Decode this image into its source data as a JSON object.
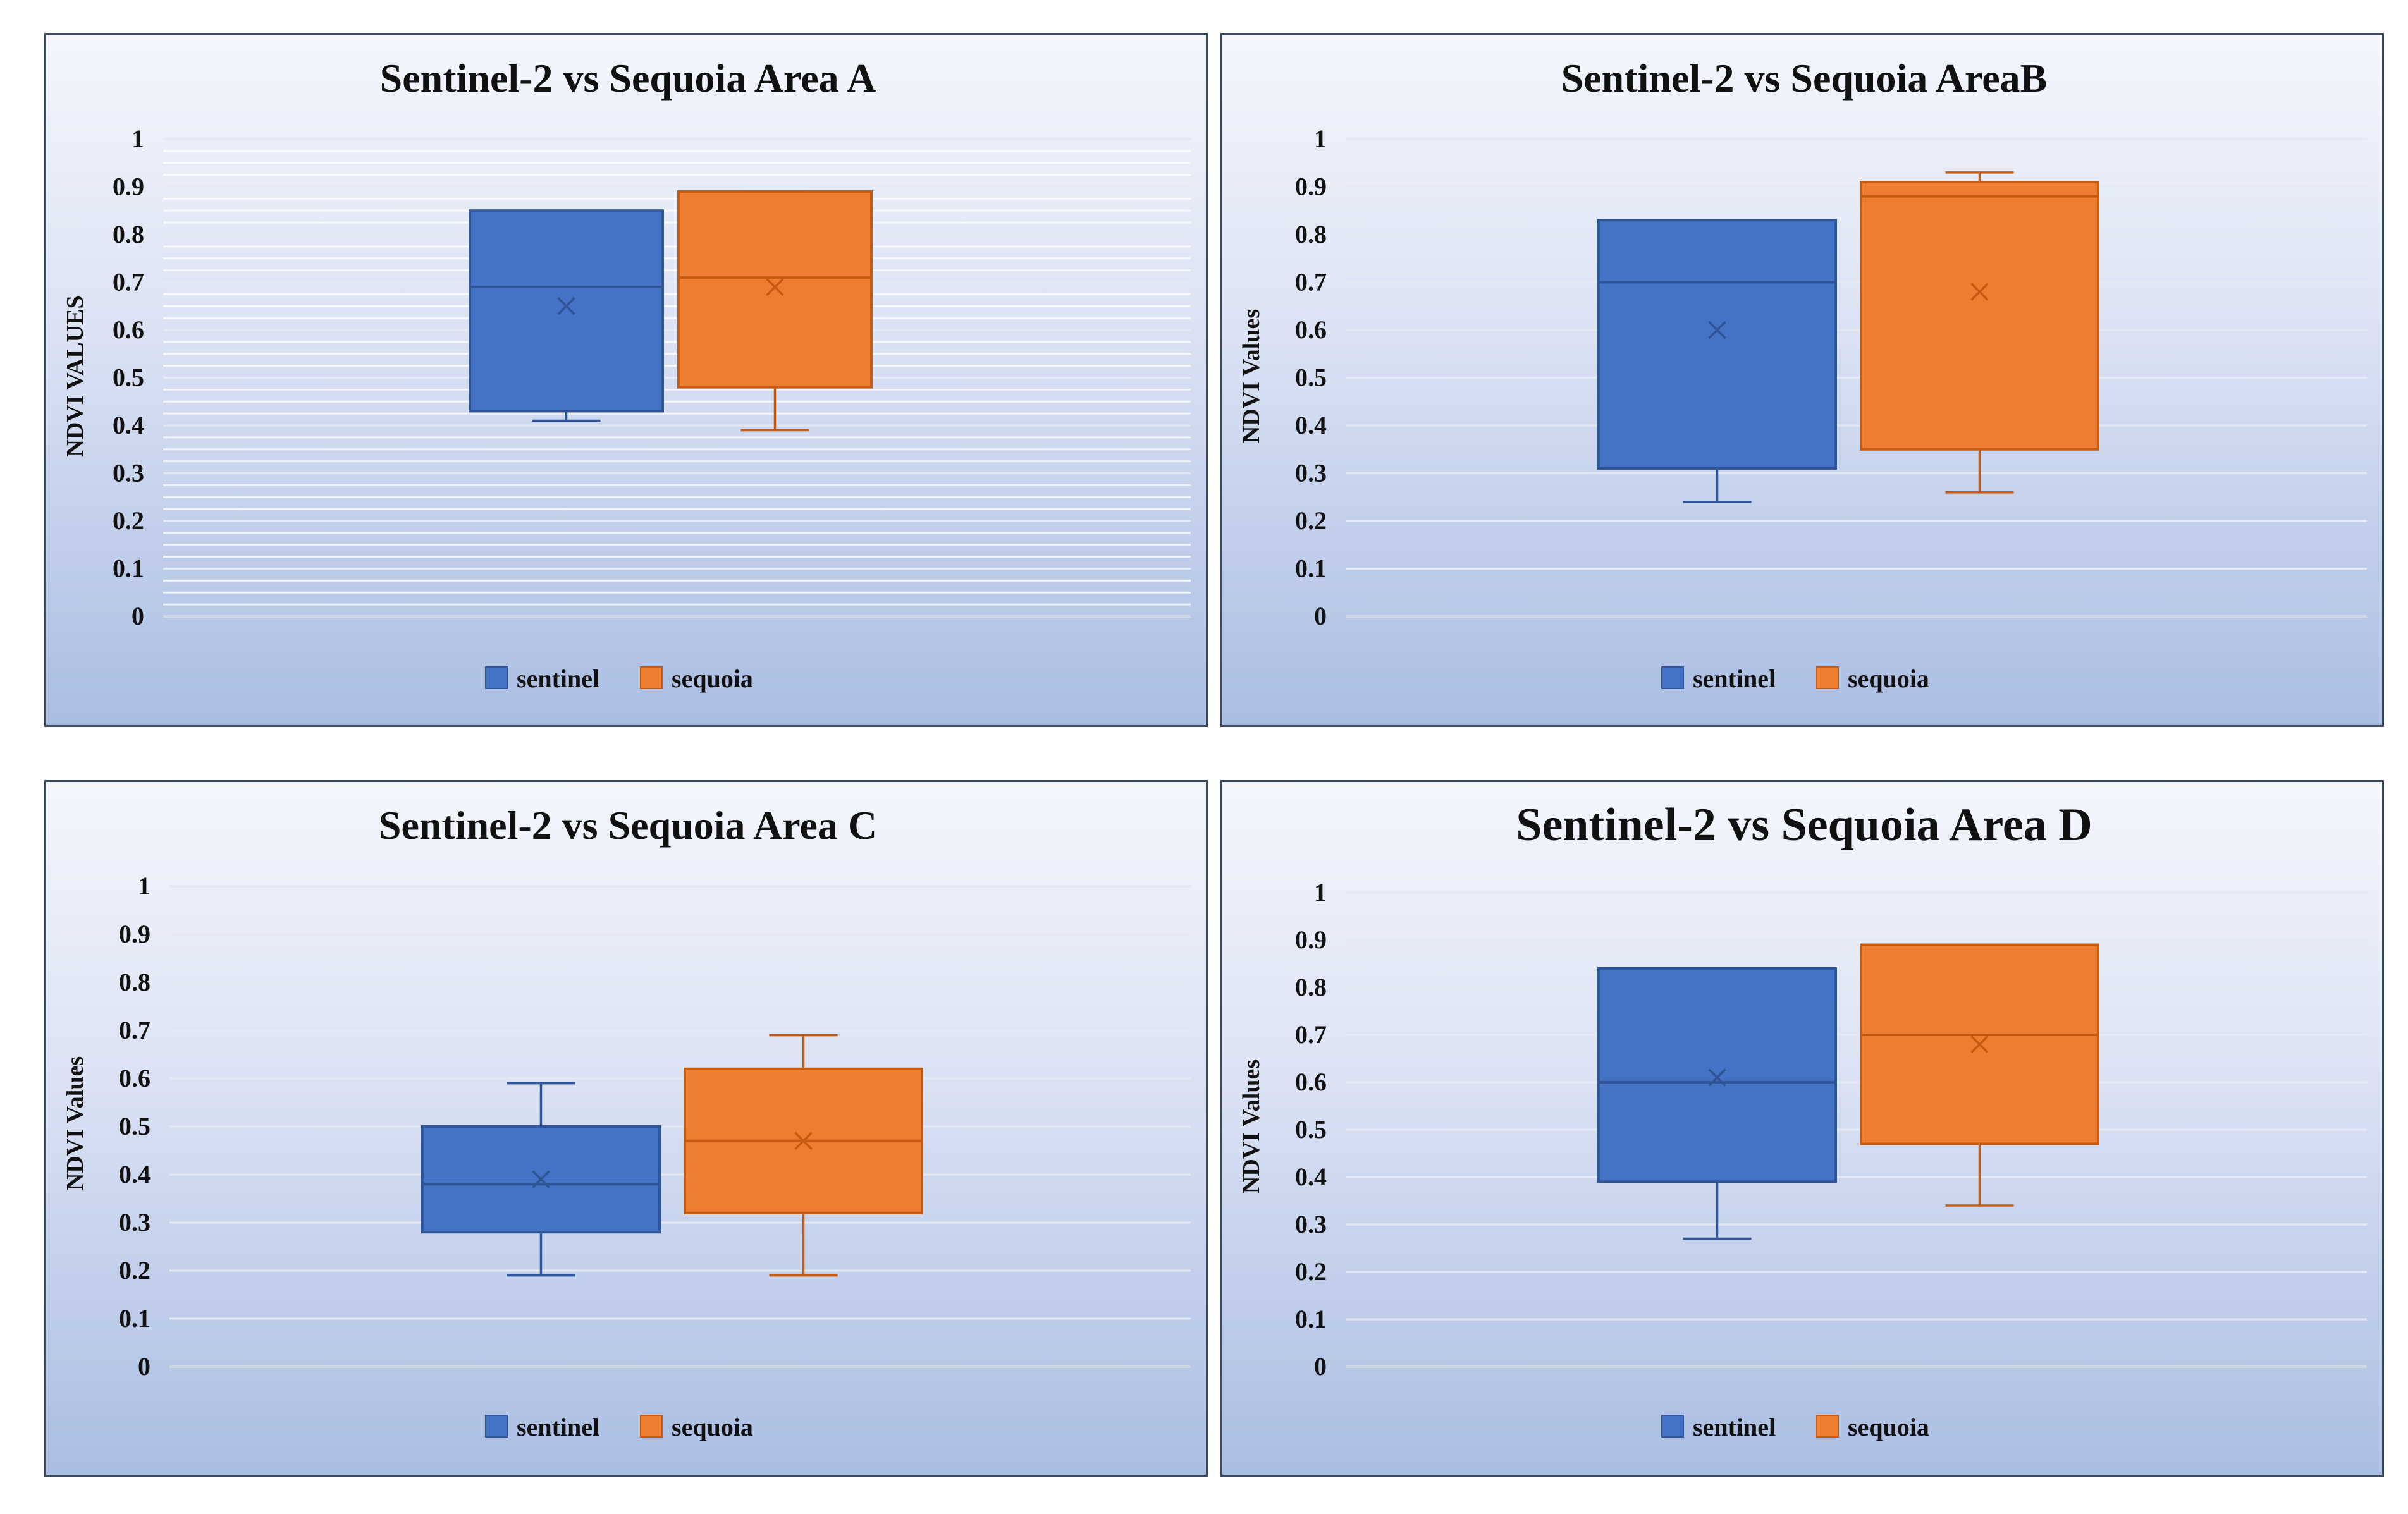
{
  "colors": {
    "sentinel": "#4472c4",
    "sentinel_edge": "#2f5597",
    "sequoia": "#ed7d31",
    "sequoia_edge": "#c55a11"
  },
  "chart_data": [
    {
      "type": "box",
      "title": "Sentinel-2  vs Sequoia  Area A",
      "ylabel": "NDVI VALUES",
      "ylim": [
        0,
        1
      ],
      "ticks": [
        "0",
        "0.1",
        "0.2",
        "0.3",
        "0.4",
        "0.5",
        "0.6",
        "0.7",
        "0.8",
        "0.9",
        "1"
      ],
      "grid": "dense",
      "legend": [
        "sentinel",
        "sequoia"
      ],
      "legend_position": "bottom",
      "series": [
        {
          "name": "sentinel",
          "min": 0.41,
          "q1": 0.43,
          "median": 0.69,
          "mean": 0.65,
          "q3": 0.85,
          "max": 0.85
        },
        {
          "name": "sequoia",
          "min": 0.39,
          "q1": 0.48,
          "median": 0.71,
          "mean": 0.69,
          "q3": 0.89,
          "max": 0.89
        }
      ]
    },
    {
      "type": "box",
      "title": "Sentinel-2  vs Sequoia  AreaB",
      "ylabel": "NDVI Values",
      "ylim": [
        0,
        1
      ],
      "ticks": [
        "0",
        "0.1",
        "0.2",
        "0.3",
        "0.4",
        "0.5",
        "0.6",
        "0.7",
        "0.8",
        "0.9",
        "1"
      ],
      "grid": "major",
      "legend": [
        "sentinel",
        "sequoia"
      ],
      "legend_position": "bottom",
      "series": [
        {
          "name": "sentinel",
          "min": 0.24,
          "q1": 0.31,
          "median": 0.7,
          "mean": 0.6,
          "q3": 0.83,
          "max": 0.83
        },
        {
          "name": "sequoia",
          "min": 0.26,
          "q1": 0.35,
          "median": 0.88,
          "mean": 0.68,
          "q3": 0.91,
          "max": 0.93
        }
      ]
    },
    {
      "type": "box",
      "title": "Sentinel-2  vs Sequoia  Area C",
      "ylabel": "NDVI Values",
      "ylim": [
        0,
        1
      ],
      "ticks": [
        "0",
        "0.1",
        "0.2",
        "0.3",
        "0.4",
        "0.5",
        "0.6",
        "0.7",
        "0.8",
        "0.9",
        "1"
      ],
      "grid": "major",
      "legend": [
        "sentinel",
        "sequoia"
      ],
      "legend_position": "bottom",
      "series": [
        {
          "name": "sentinel",
          "min": 0.19,
          "q1": 0.28,
          "median": 0.38,
          "mean": 0.39,
          "q3": 0.5,
          "max": 0.59
        },
        {
          "name": "sequoia",
          "min": 0.19,
          "q1": 0.32,
          "median": 0.47,
          "mean": 0.47,
          "q3": 0.62,
          "max": 0.69
        }
      ]
    },
    {
      "type": "box",
      "title": "Sentinel-2 vs Sequoia Area D",
      "ylabel": "NDVI Values",
      "ylim": [
        0,
        1
      ],
      "ticks": [
        "0",
        "0.1",
        "0.2",
        "0.3",
        "0.4",
        "0.5",
        "0.6",
        "0.7",
        "0.8",
        "0.9",
        "1"
      ],
      "grid": "major",
      "legend": [
        "sentinel",
        "sequoia"
      ],
      "legend_position": "bottom",
      "series": [
        {
          "name": "sentinel",
          "min": 0.27,
          "q1": 0.39,
          "median": 0.6,
          "mean": 0.61,
          "q3": 0.84,
          "max": 0.84
        },
        {
          "name": "sequoia",
          "min": 0.34,
          "q1": 0.47,
          "median": 0.7,
          "mean": 0.68,
          "q3": 0.89,
          "max": 0.89
        }
      ]
    }
  ]
}
